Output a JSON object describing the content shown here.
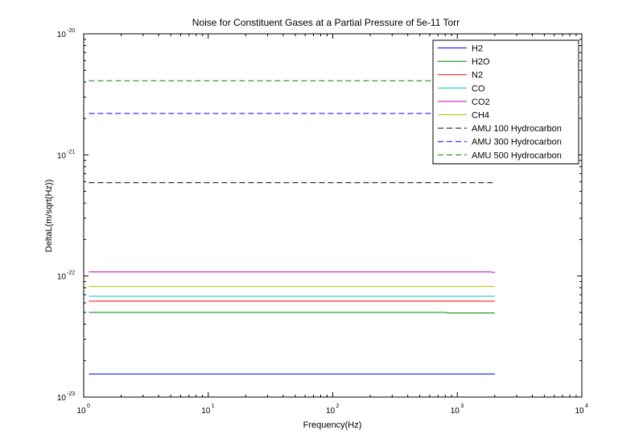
{
  "chart_data": {
    "type": "line",
    "title": "Noise for Constituent Gases at a Partial Pressure of 5e-11 Torr",
    "xlabel": "Frequency(Hz)",
    "ylabel": "DeltaL(m/sqrt(Hz))",
    "xscale": "log",
    "yscale": "log",
    "xlim": [
      1,
      10000
    ],
    "ylim": [
      1e-23,
      1e-20
    ],
    "grid": false,
    "legend_position": "top-right",
    "x_ticks": [
      {
        "base": "10",
        "exp": "0"
      },
      {
        "base": "10",
        "exp": "1"
      },
      {
        "base": "10",
        "exp": "2"
      },
      {
        "base": "10",
        "exp": "3"
      },
      {
        "base": "10",
        "exp": "4"
      }
    ],
    "y_ticks": [
      {
        "base": "10",
        "exp": "-23"
      },
      {
        "base": "10",
        "exp": "-22"
      },
      {
        "base": "10",
        "exp": "-21"
      },
      {
        "base": "10",
        "exp": "-20"
      }
    ],
    "series": [
      {
        "name": "H2",
        "color": "#0000ff",
        "style": "solid",
        "x": [
          1.1,
          2000
        ],
        "y": [
          1.55e-23,
          1.55e-23
        ]
      },
      {
        "name": "H2O",
        "color": "#008000",
        "style": "solid",
        "x": [
          1.1,
          800,
          850,
          2000
        ],
        "y": [
          5e-23,
          5e-23,
          4.95e-23,
          4.95e-23
        ]
      },
      {
        "name": "N2",
        "color": "#ff0000",
        "style": "solid",
        "x": [
          1.1,
          2000
        ],
        "y": [
          6.2e-23,
          6.2e-23
        ]
      },
      {
        "name": "CO",
        "color": "#00bfbf",
        "style": "solid",
        "x": [
          1.1,
          2000
        ],
        "y": [
          6.8e-23,
          6.8e-23
        ]
      },
      {
        "name": "CO2",
        "color": "#bf00bf",
        "style": "solid",
        "x": [
          1.1,
          1800,
          2000
        ],
        "y": [
          1.08e-22,
          1.08e-22,
          1.07e-22
        ]
      },
      {
        "name": "CH4",
        "color": "#bfbf00",
        "style": "solid",
        "x": [
          1.1,
          2000
        ],
        "y": [
          8.2e-23,
          8.2e-23
        ]
      },
      {
        "name": "AMU 100 Hydrocarbon",
        "color": "#000000",
        "style": "dashed",
        "x": [
          1.1,
          2000
        ],
        "y": [
          5.9e-22,
          5.9e-22
        ]
      },
      {
        "name": "AMU 300 Hydrocarbon",
        "color": "#0000ff",
        "style": "dashed",
        "x": [
          1.1,
          2000
        ],
        "y": [
          2.2e-21,
          2.2e-21
        ]
      },
      {
        "name": "AMU 500 Hydrocarbon",
        "color": "#008000",
        "style": "dashed",
        "x": [
          1.1,
          2000
        ],
        "y": [
          4.1e-21,
          4.1e-21
        ]
      }
    ]
  }
}
